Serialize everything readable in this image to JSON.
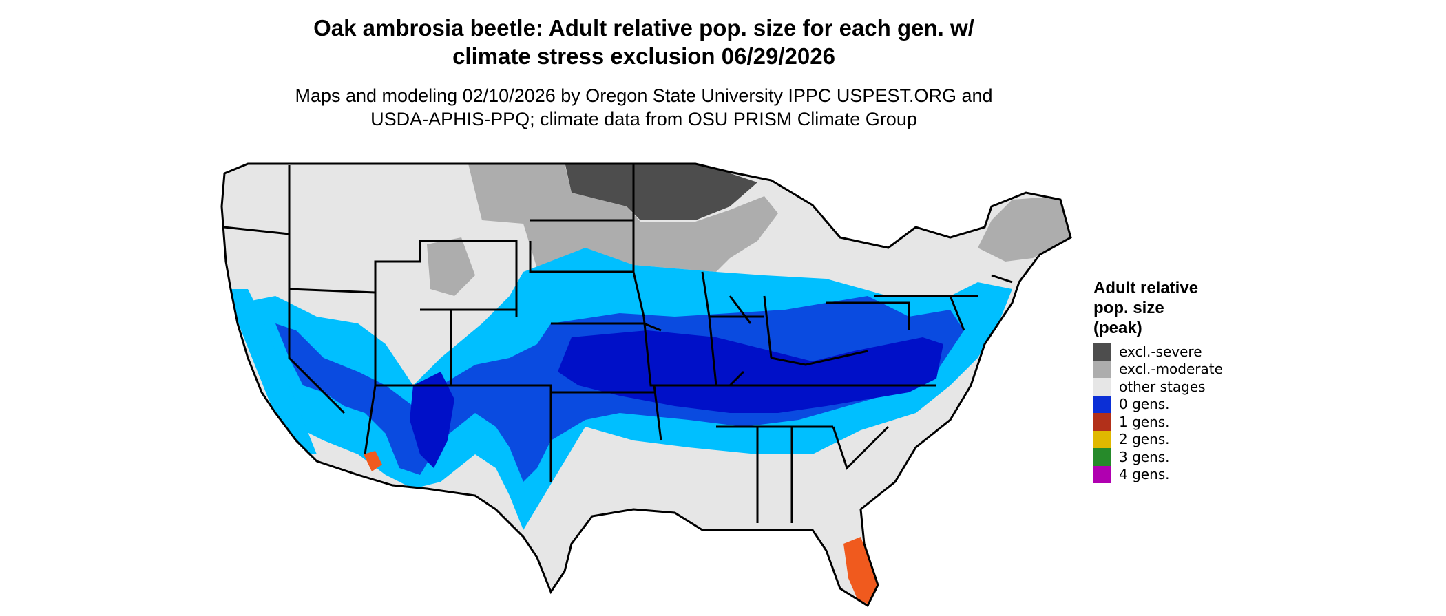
{
  "title_lines": [
    "Oak ambrosia beetle: Adult relative pop. size for each gen. w/",
    "climate stress exclusion 06/29/2026"
  ],
  "subtitle_lines": [
    "Maps and modeling 02/10/2026 by Oregon State University IPPC USPEST.ORG and",
    "USDA-APHIS-PPQ; climate data from OSU PRISM Climate Group"
  ],
  "legend": {
    "title_lines": [
      "Adult relative",
      "pop. size",
      "(peak)"
    ],
    "items": [
      {
        "label": "excl.-severe",
        "color": "#4d4d4d"
      },
      {
        "label": "excl.-moderate",
        "color": "#adadad"
      },
      {
        "label": "other stages",
        "color": "#e6e6e6"
      },
      {
        "label": "0 gens.",
        "color": "#0b2fd6"
      },
      {
        "label": "1 gens.",
        "color": "#b2301a"
      },
      {
        "label": "2 gens.",
        "color": "#e0b800"
      },
      {
        "label": "3 gens.",
        "color": "#268a2a"
      },
      {
        "label": "4 gens.",
        "color": "#b000b0"
      }
    ]
  },
  "map_colors": {
    "land": "#e6e6e6",
    "light_blue": "#00bfff",
    "mid_blue": "#0a4be0",
    "dark_blue": "#0010c8",
    "severe": "#4d4d4d",
    "moderate": "#adadad",
    "orange": "#f05a1e",
    "dark_red": "#b2301a",
    "border": "#000000"
  }
}
